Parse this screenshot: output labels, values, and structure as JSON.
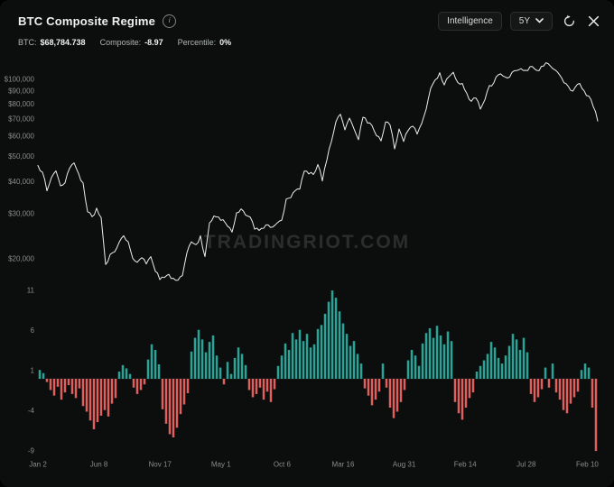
{
  "header": {
    "title": "BTC Composite Regime",
    "info_glyph": "i",
    "controls": {
      "intelligence": "Intelligence",
      "timeframe": "5Y"
    }
  },
  "stats": {
    "btc": {
      "label": "BTC:",
      "value": "$68,784.738"
    },
    "composite": {
      "label": "Composite:",
      "value": "-8.97"
    },
    "percentile": {
      "label": "Percentile:",
      "value": "0%"
    }
  },
  "watermark": "TRADINGRIOT.COM",
  "colors": {
    "background": "#0c0e0d",
    "price_line": "#ededed",
    "positive_bar": "#26a69a",
    "negative_bar": "#e05f5f",
    "axis_text": "#878d8b"
  },
  "chart_data": [
    {
      "type": "line",
      "name": "BTC Price (USD)",
      "scale": "log",
      "ylim_usd": [
        14000,
        128000
      ],
      "grid": false,
      "legend": "none",
      "y_ticks": [
        {
          "label": "$100,000",
          "value": 100
        },
        {
          "label": "$90,000",
          "value": 90
        },
        {
          "label": "$80,000",
          "value": 80
        },
        {
          "label": "$70,000",
          "value": 70
        },
        {
          "label": "$60,000",
          "value": 60
        },
        {
          "label": "$50,000",
          "value": 50
        },
        {
          "label": "$40,000",
          "value": 40
        },
        {
          "label": "$30,000",
          "value": 30
        },
        {
          "label": "$20,000",
          "value": 20
        }
      ],
      "x_ticks": [
        "Jan 2",
        "Jun 8",
        "Nov 17",
        "May 1",
        "Oct 6",
        "Mar 16",
        "Aug 31",
        "Feb 14",
        "Jul 28",
        "Feb 10"
      ],
      "prices_usd_thousands": [
        46.2,
        43.5,
        36.8,
        41.5,
        44.0,
        38.5,
        39.5,
        45.0,
        47.3,
        43.0,
        39.5,
        30.5,
        29.2,
        31.5,
        29.0,
        19.0,
        20.8,
        21.3,
        23.2,
        24.6,
        23.3,
        20.1,
        19.4,
        20.2,
        19.1,
        20.4,
        17.9,
        16.6,
        16.9,
        17.4,
        16.8,
        16.5,
        17.2,
        21.1,
        23.3,
        22.7,
        24.6,
        20.4,
        27.6,
        29.4,
        29.1,
        28.4,
        26.8,
        25.4,
        30.2,
        31.3,
        29.6,
        29.1,
        26.1,
        25.8,
        26.3,
        27.1,
        26.6,
        27.6,
        28.3,
        34.2,
        34.6,
        36.9,
        37.4,
        43.9,
        42.8,
        42.6,
        46.6,
        40.2,
        48.5,
        57.2,
        68.3,
        73.1,
        63.6,
        70.6,
        64.2,
        58.2,
        71.2,
        67.6,
        66.1,
        60.3,
        57.6,
        68.2,
        66.4,
        53.6,
        64.1,
        57.3,
        63.2,
        65.7,
        61.2,
        67.3,
        76.5,
        92.3,
        99.6,
        106.2,
        95.1,
        102.3,
        106.6,
        97.2,
        96.4,
        88.2,
        82.1,
        84.6,
        76.6,
        83.2,
        94.6,
        97.1,
        104.2,
        103.1,
        101.2,
        106.4,
        108.2,
        110.1,
        108.4,
        112.1,
        109.8,
        108.1,
        112.6,
        115.2,
        110.3,
        107.2,
        101.3,
        96.2,
        90.6,
        93.1,
        96.4,
        90.2,
        86.1,
        78.3,
        68.8
      ]
    },
    {
      "type": "bar",
      "name": "Composite Oscillator",
      "ylim": [
        -10,
        12
      ],
      "grid": false,
      "y_ticks": [
        11,
        6,
        1,
        -4,
        -9
      ],
      "values": [
        1.1,
        0.7,
        -0.4,
        -1.4,
        -2.1,
        -1.0,
        -2.6,
        -1.7,
        -0.8,
        -1.9,
        -2.4,
        -1.2,
        -3.4,
        -4.1,
        -5.2,
        -6.3,
        -5.4,
        -4.6,
        -3.9,
        -4.7,
        -3.1,
        -2.4,
        0.9,
        1.7,
        1.3,
        0.6,
        -1.1,
        -1.9,
        -1.4,
        -0.7,
        2.4,
        4.3,
        3.6,
        1.8,
        -3.8,
        -5.6,
        -6.9,
        -7.3,
        -6.1,
        -4.4,
        -3.2,
        -1.8,
        3.4,
        5.1,
        6.1,
        4.9,
        3.3,
        4.6,
        5.4,
        2.9,
        1.4,
        -0.7,
        2.1,
        0.6,
        2.6,
        3.9,
        3.1,
        1.7,
        -1.4,
        -2.3,
        -1.9,
        -1.1,
        -2.6,
        -1.6,
        -2.9,
        -1.3,
        1.6,
        2.9,
        4.4,
        3.6,
        5.7,
        4.9,
        6.1,
        4.7,
        5.6,
        3.9,
        4.3,
        6.2,
        6.7,
        8.1,
        9.6,
        11.0,
        10.1,
        8.4,
        6.9,
        5.6,
        4.1,
        4.7,
        3.1,
        1.9,
        -1.2,
        -2.1,
        -3.3,
        -2.6,
        -1.6,
        1.9,
        -1.1,
        -3.6,
        -4.9,
        -4.1,
        -2.9,
        -1.4,
        2.3,
        3.6,
        2.9,
        1.6,
        4.4,
        5.7,
        6.3,
        5.1,
        6.6,
        5.4,
        4.3,
        5.9,
        4.7,
        -2.9,
        -4.3,
        -5.1,
        -3.6,
        -2.4,
        -1.7,
        0.9,
        1.6,
        2.3,
        3.1,
        4.6,
        3.9,
        2.6,
        1.9,
        2.9,
        4.1,
        5.6,
        4.9,
        3.6,
        5.1,
        3.3,
        -1.9,
        -2.9,
        -2.3,
        -1.3,
        1.4,
        -1.1,
        1.9,
        -1.7,
        -2.6,
        -3.9,
        -4.3,
        -3.1,
        -2.3,
        -1.6,
        1.1,
        1.9,
        1.4,
        -3.6,
        -9.0
      ]
    }
  ]
}
